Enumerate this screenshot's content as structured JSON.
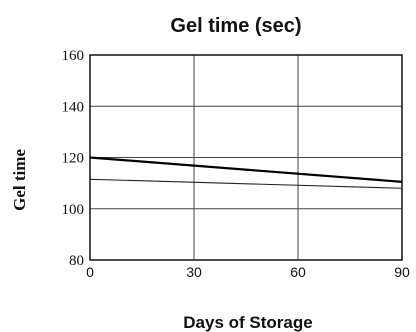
{
  "chart_data": {
    "type": "line",
    "title": "Gel time (sec)",
    "xlabel": "Days of Storage",
    "ylabel": "Gel time",
    "xlim": [
      0,
      90
    ],
    "ylim": [
      80,
      160
    ],
    "x_ticks": [
      0,
      30,
      60,
      90
    ],
    "x_tick_labels": [
      "0",
      "30",
      "60",
      "90"
    ],
    "y_ticks": [
      80,
      100,
      120,
      140,
      160
    ],
    "y_tick_labels": [
      "80",
      "100",
      "120",
      "140",
      "160"
    ],
    "grid": true,
    "series": [
      {
        "x": [
          0,
          90
        ],
        "values": [
          120,
          110.5
        ],
        "color": "#000000",
        "weight": "bold"
      },
      {
        "x": [
          0,
          90
        ],
        "values": [
          111.5,
          108
        ],
        "color": "#222222",
        "weight": "thin"
      }
    ]
  }
}
